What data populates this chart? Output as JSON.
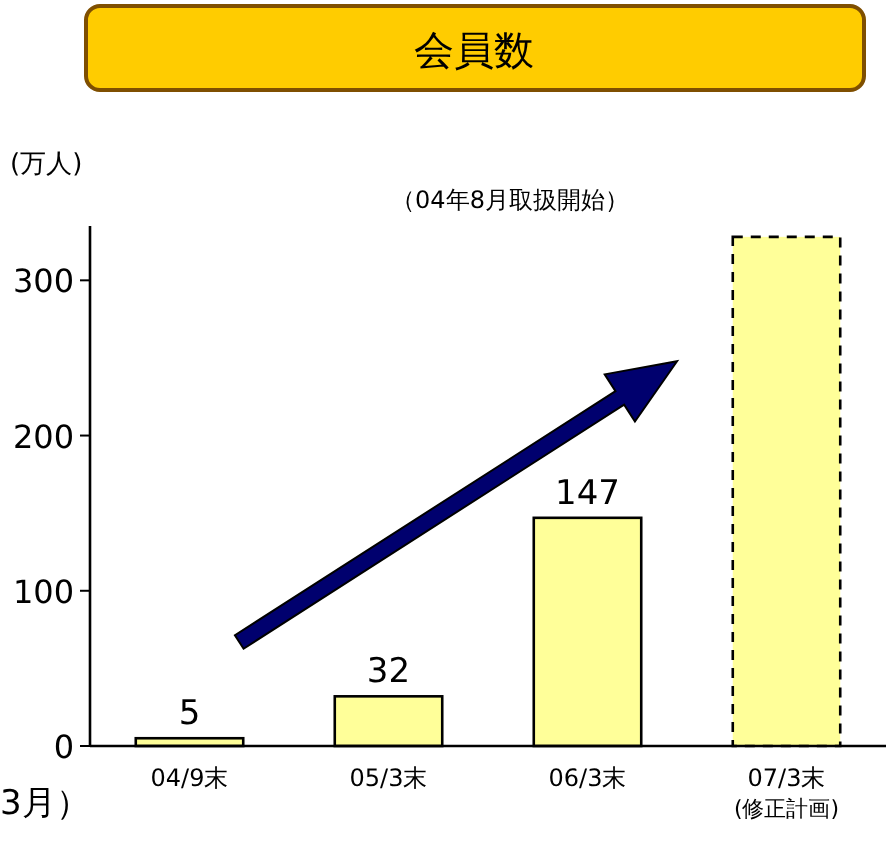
{
  "chart_data": {
    "type": "bar",
    "title": "会員数",
    "subtitle": "（04年8月取扱開始）",
    "ylabel": "(万人)",
    "categories": [
      "04/9末",
      "05/3末",
      "06/3末",
      "07/3末\n(修正計画)"
    ],
    "series": [
      {
        "color": "#ffff99",
        "values": [
          5,
          32,
          147,
          null
        ],
        "value_labels": [
          "5",
          "32",
          "147",
          null
        ],
        "line_style": "solid"
      },
      {
        "color": "#ffff99",
        "values": [
          null,
          null,
          null,
          328
        ],
        "line_style": "dashed"
      }
    ],
    "ylim": [
      0,
      335
    ],
    "yticks": [
      0,
      100,
      200,
      300
    ],
    "grid": false,
    "annotations": [
      "3月）"
    ]
  }
}
